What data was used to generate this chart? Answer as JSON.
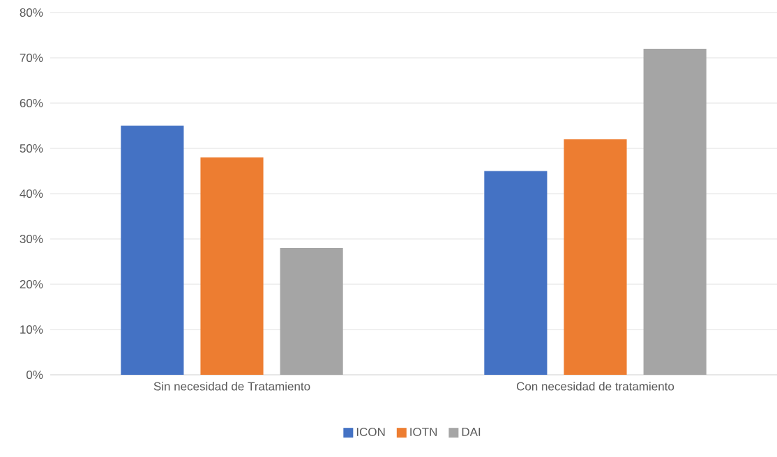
{
  "chart_data": {
    "type": "bar",
    "categories": [
      "Sin necesidad de Tratamiento",
      "Con necesidad de tratamiento"
    ],
    "series": [
      {
        "name": "ICON",
        "color": "#4472c4",
        "values": [
          55,
          45
        ]
      },
      {
        "name": "IOTN",
        "color": "#ed7d31",
        "values": [
          48,
          52
        ]
      },
      {
        "name": "DAI",
        "color": "#a5a5a5",
        "values": [
          28,
          72
        ]
      }
    ],
    "ylim": [
      0,
      80
    ],
    "yticks": [
      {
        "value": 0,
        "label": "0%"
      },
      {
        "value": 10,
        "label": "10%"
      },
      {
        "value": 20,
        "label": "20%"
      },
      {
        "value": 30,
        "label": "30%"
      },
      {
        "value": 40,
        "label": "40%"
      },
      {
        "value": 50,
        "label": "50%"
      },
      {
        "value": 60,
        "label": "60%"
      },
      {
        "value": 70,
        "label": "70%"
      },
      {
        "value": 80,
        "label": "80%"
      }
    ],
    "grid": "y",
    "legend": "bottom"
  }
}
